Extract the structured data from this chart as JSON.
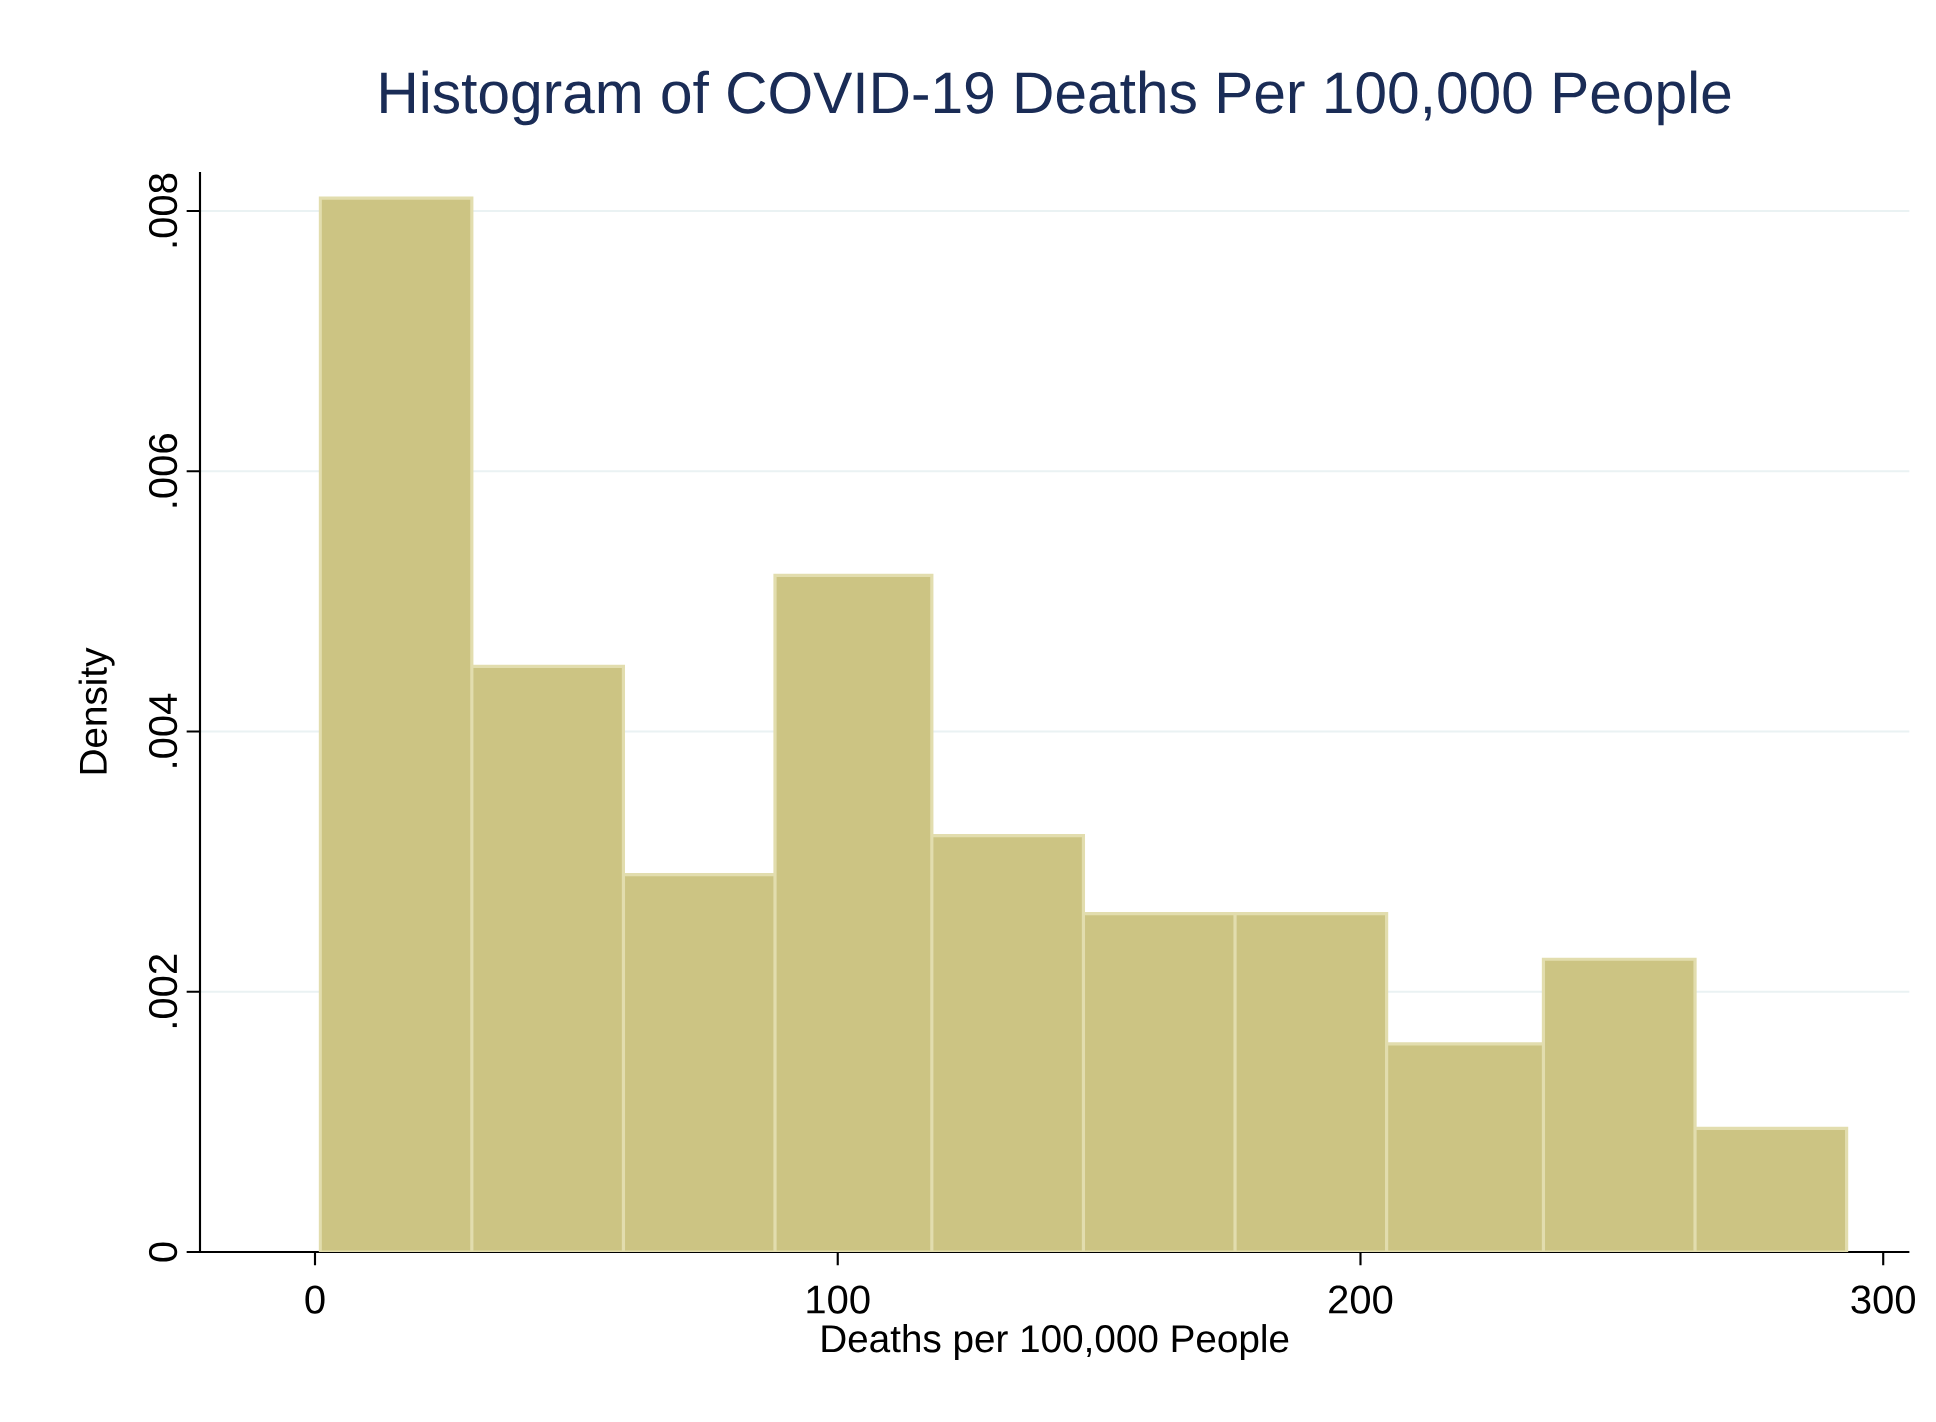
{
  "chart_data": {
    "type": "histogram",
    "title": "Histogram of COVID-19 Deaths Per 100,000 People",
    "xlabel": "Deaths per 100,000 People",
    "ylabel": "Density",
    "bins": [
      1,
      30,
      59,
      88,
      118,
      147,
      176,
      205,
      235,
      264,
      293
    ],
    "values": [
      0.0081,
      0.0045,
      0.0029,
      0.0052,
      0.0032,
      0.0026,
      0.0026,
      0.0016,
      0.00225,
      0.00095
    ],
    "color": "#ccc483",
    "xlim": [
      -22,
      305
    ],
    "xticks": [
      0,
      100,
      200,
      300
    ],
    "ylim": [
      0,
      0.0083
    ],
    "yticks": [
      {
        "value": 0,
        "label": "0"
      },
      {
        "value": 0.002,
        "label": ".002"
      },
      {
        "value": 0.004,
        "label": ".004"
      },
      {
        "value": 0.006,
        "label": ".006"
      },
      {
        "value": 0.008,
        "label": ".008"
      }
    ],
    "grid": "y"
  }
}
